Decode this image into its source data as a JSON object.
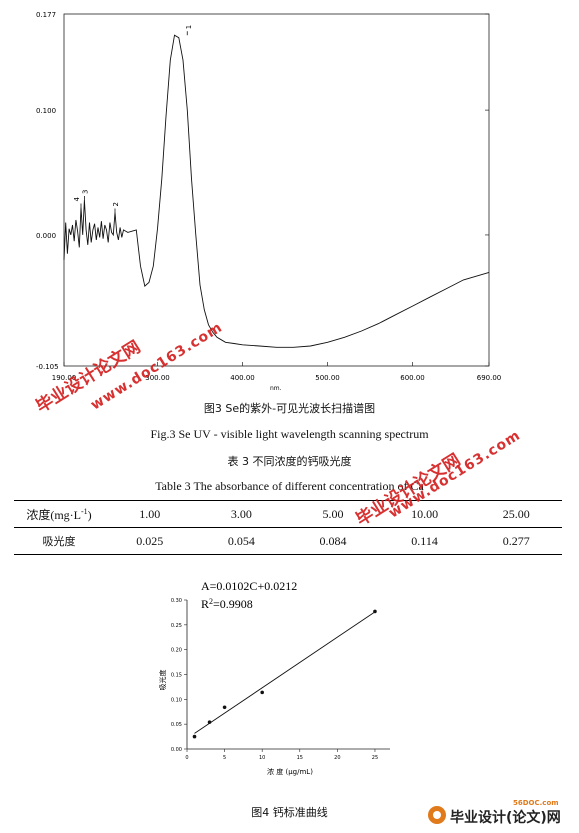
{
  "figure3": {
    "chart_data": {
      "type": "line",
      "x_tick_labels": [
        "190.00",
        "300.00",
        "400.00",
        "500.00",
        "600.00",
        "690.00"
      ],
      "x_unit_label": "nm.",
      "y_tick_labels": [
        "0.177",
        "0.100",
        "0.000",
        "-0.105"
      ],
      "xlim": [
        190,
        690
      ],
      "ylim": [
        -0.105,
        0.177
      ],
      "peak_labels": [
        "1",
        "2",
        "3",
        "4"
      ],
      "series": [
        {
          "x": [
            190,
            192,
            194,
            196,
            198,
            200,
            202,
            204,
            206,
            208,
            210,
            212,
            214,
            216,
            218,
            220,
            222,
            224,
            226,
            228,
            230,
            232,
            234,
            236,
            238,
            240,
            242,
            244,
            246,
            248,
            250,
            252,
            254,
            256,
            258,
            260,
            265,
            270,
            275,
            280,
            285,
            290,
            295,
            300,
            305,
            310,
            315,
            320,
            325,
            330,
            335,
            340,
            345,
            350,
            355,
            360,
            365,
            370,
            375,
            380,
            390,
            400,
            420,
            440,
            460,
            480,
            500,
            520,
            540,
            560,
            580,
            600,
            620,
            640,
            660,
            690
          ],
          "y": [
            -0.02,
            0.01,
            -0.015,
            0.005,
            0.0,
            0.008,
            -0.005,
            0.012,
            0.003,
            -0.01,
            0.022,
            0.0,
            0.028,
            0.004,
            -0.008,
            0.01,
            -0.006,
            0.004,
            0.009,
            -0.004,
            0.006,
            -0.002,
            0.011,
            -0.003,
            0.008,
            0.004,
            -0.006,
            0.01,
            0.002,
            0.0,
            0.018,
            0.002,
            -0.004,
            0.006,
            -0.002,
            0.004,
            0.002,
            0.003,
            0.004,
            -0.025,
            -0.041,
            -0.038,
            -0.025,
            0.005,
            0.045,
            0.095,
            0.14,
            0.16,
            0.158,
            0.14,
            0.1,
            0.045,
            0.0,
            -0.04,
            -0.06,
            -0.072,
            -0.078,
            -0.082,
            -0.084,
            -0.086,
            -0.087,
            -0.088,
            -0.089,
            -0.09,
            -0.09,
            -0.089,
            -0.086,
            -0.082,
            -0.077,
            -0.071,
            -0.064,
            -0.057,
            -0.05,
            -0.043,
            -0.036,
            -0.03
          ]
        }
      ]
    },
    "caption_cn": "图3 Se的紫外-可见光波长扫描谱图",
    "caption_en": "Fig.3      Se UV - visible light wavelength scanning spectrum"
  },
  "table3": {
    "title_cn": "表 3  不同浓度的钙吸光度",
    "title_en": "Table 3 The absorbance of different concentration of Ca",
    "header_label": "浓度(mg·L",
    "header_sup": "-1",
    "header_close": ")",
    "concentrations": [
      "1.00",
      "3.00",
      "5.00",
      "10.00",
      "25.00"
    ],
    "absorbance_label": "吸光度",
    "absorbances": [
      "0.025",
      "0.054",
      "0.084",
      "0.114",
      "0.277"
    ]
  },
  "figure4": {
    "equation": "A=0.0102C+0.0212",
    "r2_prefix": "R",
    "r2_sup": "2",
    "r2_value": "=0.9908",
    "chart_data": {
      "type": "scatter",
      "xlabel": "浓  度  (μg/mL)",
      "ylabel": "吸光度",
      "x_tick_labels": [
        "0",
        "5",
        "10",
        "15",
        "20",
        "25"
      ],
      "y_tick_labels": [
        "0.00",
        "0.05",
        "0.10",
        "0.15",
        "0.20",
        "0.25",
        "0.30"
      ],
      "xlim": [
        0,
        27
      ],
      "ylim": [
        0,
        0.3
      ],
      "points": {
        "x": [
          1,
          3,
          5,
          10,
          25
        ],
        "y": [
          0.025,
          0.054,
          0.084,
          0.114,
          0.277
        ]
      },
      "fit_line": {
        "slope": 0.0102,
        "intercept": 0.0212,
        "x_range": [
          1,
          25
        ]
      }
    },
    "caption_cn": "图4  钙标准曲线"
  },
  "watermarks": [
    "毕业设计论文网",
    "www.doc163.com"
  ],
  "logo": {
    "site": "56DOC.com",
    "text": "毕业设计(论文)网"
  },
  "colors": {
    "watermark": "#d42020",
    "logo_orange": "#e07a1a",
    "logo_text": "#222222"
  }
}
